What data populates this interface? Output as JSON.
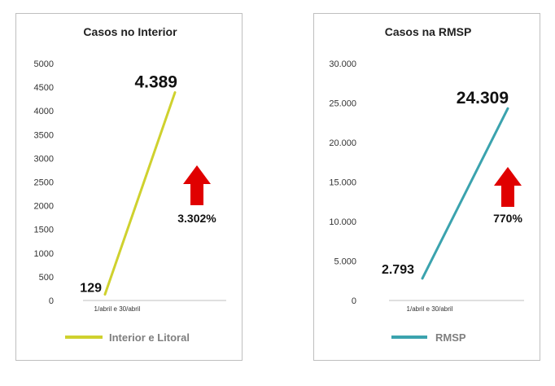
{
  "chart_data": [
    {
      "type": "line",
      "title": "Casos no Interior",
      "categories": [
        "1/abril e 30/abril"
      ],
      "x": [
        "1/abril",
        "30/abril"
      ],
      "series": [
        {
          "name": "Interior e Litoral",
          "values": [
            129,
            4389
          ],
          "color": "#cfd12e"
        }
      ],
      "data_labels": [
        "129",
        "4.389"
      ],
      "ylim": [
        0,
        5000
      ],
      "yticks": [
        0,
        500,
        1000,
        1500,
        2000,
        2500,
        3000,
        3500,
        4000,
        4500,
        5000
      ],
      "ytick_labels": [
        "0",
        "500",
        "1000",
        "1500",
        "2000",
        "2500",
        "3000",
        "3500",
        "4000",
        "4500",
        "5000"
      ],
      "legend": "bottom",
      "annotation": {
        "text": "3.302%",
        "arrow": "up",
        "arrow_color": "#e00000"
      }
    },
    {
      "type": "line",
      "title": "Casos na RMSP",
      "categories": [
        "1/abril e 30/abril"
      ],
      "x": [
        "1/abril",
        "30/abril"
      ],
      "series": [
        {
          "name": "RMSP",
          "values": [
            2793,
            24309
          ],
          "color": "#3ba3ae"
        }
      ],
      "data_labels": [
        "2.793",
        "24.309"
      ],
      "ylim": [
        0,
        30000
      ],
      "yticks": [
        0,
        5000,
        10000,
        15000,
        20000,
        25000,
        30000
      ],
      "ytick_labels": [
        "0",
        "5.000",
        "10.000",
        "15.000",
        "20.000",
        "25.000",
        "30.000"
      ],
      "legend": "bottom",
      "annotation": {
        "text": "770%",
        "arrow": "up",
        "arrow_color": "#e00000"
      }
    }
  ]
}
